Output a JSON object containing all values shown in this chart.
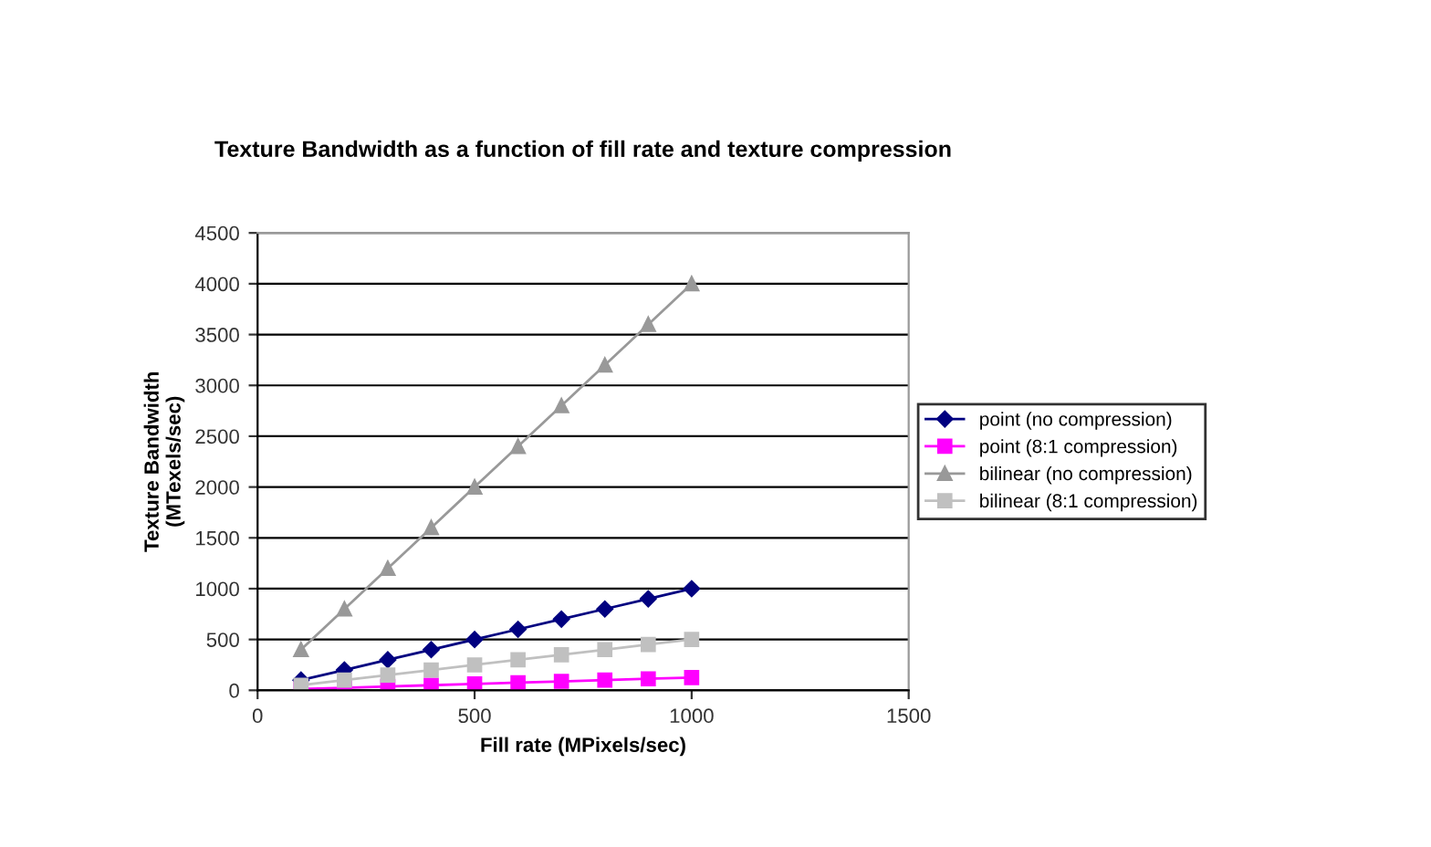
{
  "chart_data": {
    "type": "line",
    "title": "Texture Bandwidth as a function of fill rate and texture compression",
    "xlabel": "Fill rate (MPixels/sec)",
    "ylabel": "Texture Bandwidth\n(MTexels/sec)",
    "x": [
      100,
      200,
      300,
      400,
      500,
      600,
      700,
      800,
      900,
      1000
    ],
    "series": [
      {
        "name": "point (no compression)",
        "color": "#000080",
        "marker": "diamond",
        "values": [
          100,
          200,
          300,
          400,
          500,
          600,
          700,
          800,
          900,
          1000
        ]
      },
      {
        "name": "point (8:1 compression)",
        "color": "#ff00ff",
        "marker": "square",
        "values": [
          13,
          25,
          38,
          50,
          63,
          75,
          88,
          100,
          113,
          125
        ]
      },
      {
        "name": "bilinear (no compression)",
        "color": "#999999",
        "marker": "triangle",
        "values": [
          400,
          800,
          1200,
          1600,
          2000,
          2400,
          2800,
          3200,
          3600,
          4000
        ]
      },
      {
        "name": "bilinear (8:1 compression)",
        "color": "#c0c0c0",
        "marker": "square",
        "values": [
          50,
          100,
          150,
          200,
          250,
          300,
          350,
          400,
          450,
          500
        ]
      }
    ],
    "xlim": [
      0,
      1500
    ],
    "xticks": [
      0,
      500,
      1000,
      1500
    ],
    "ylim": [
      0,
      4500
    ],
    "yticks": [
      0,
      500,
      1000,
      1500,
      2000,
      2500,
      3000,
      3500,
      4000,
      4500
    ],
    "grid": "y",
    "legend": "right",
    "line_style": "solid"
  }
}
